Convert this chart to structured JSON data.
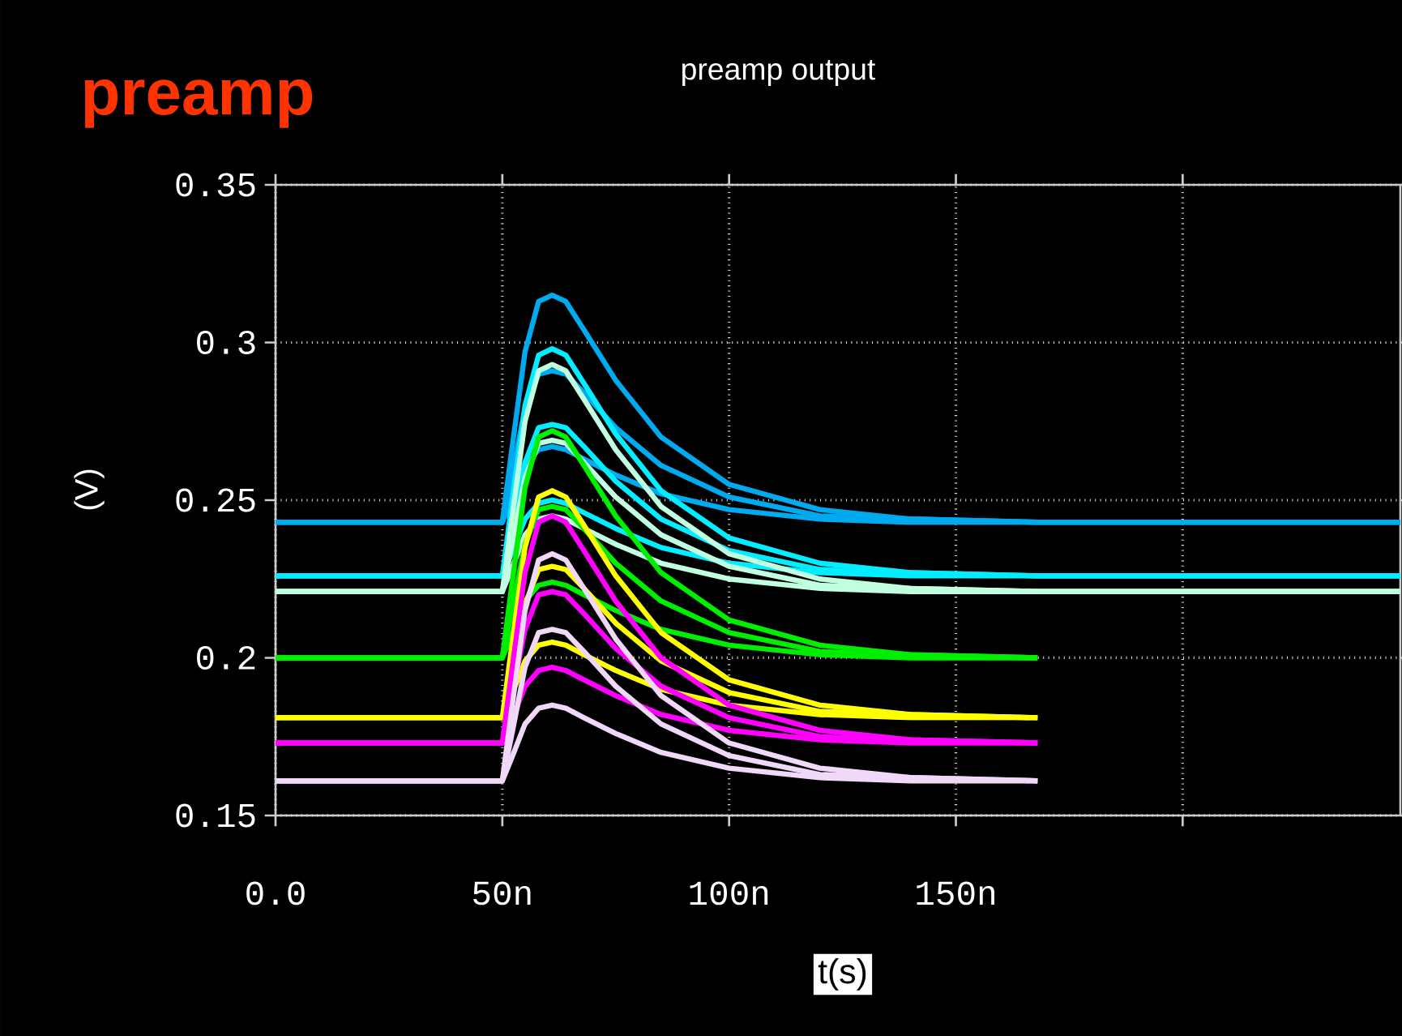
{
  "chart_data": [
    {
      "type": "line",
      "title": "preamp output",
      "xlabel": "t(s)",
      "ylabel": "(V)",
      "annotations": [
        "preamp"
      ],
      "grid": true,
      "xlim": [
        0,
        248
      ],
      "ylim": [
        0.15,
        0.35
      ],
      "xticks": [
        {
          "value": 0,
          "label": "0.0"
        },
        {
          "value": 50,
          "label": "50n"
        },
        {
          "value": 100,
          "label": "100n"
        },
        {
          "value": 150,
          "label": "150n"
        },
        {
          "value": 200,
          "label": null
        }
      ],
      "yticks": [
        0.15,
        0.2,
        0.25,
        0.3,
        0.35
      ],
      "x": [
        0,
        50,
        52,
        55,
        58,
        61,
        64,
        68,
        75,
        85,
        100,
        120,
        140,
        168
      ],
      "series": [
        {
          "color": "#00aaee",
          "x": [
            0,
            50,
            52,
            55,
            58,
            61,
            64,
            68,
            75,
            85,
            100,
            120,
            140,
            168,
            248
          ],
          "values": [
            0.243,
            0.243,
            0.265,
            0.297,
            0.313,
            0.315,
            0.313,
            0.304,
            0.288,
            0.27,
            0.255,
            0.247,
            0.244,
            0.243,
            0.243
          ]
        },
        {
          "color": "#00aaee",
          "x": [
            0,
            50,
            52,
            55,
            58,
            61,
            64,
            68,
            75,
            85,
            100,
            120,
            140,
            168,
            248
          ],
          "values": [
            0.243,
            0.243,
            0.257,
            0.279,
            0.29,
            0.291,
            0.29,
            0.284,
            0.273,
            0.261,
            0.251,
            0.245,
            0.244,
            0.243,
            0.243
          ]
        },
        {
          "color": "#00aaee",
          "x": [
            0,
            50,
            52,
            55,
            58,
            61,
            64,
            68,
            75,
            85,
            100,
            120,
            140,
            168,
            248
          ],
          "values": [
            0.243,
            0.243,
            0.25,
            0.261,
            0.266,
            0.267,
            0.266,
            0.263,
            0.258,
            0.252,
            0.247,
            0.244,
            0.243,
            0.243,
            0.243
          ]
        },
        {
          "color": "#00eeff",
          "x": [
            0,
            50,
            52,
            55,
            58,
            61,
            64,
            68,
            75,
            85,
            100,
            120,
            140,
            168,
            248
          ],
          "values": [
            0.226,
            0.226,
            0.248,
            0.28,
            0.296,
            0.298,
            0.296,
            0.287,
            0.271,
            0.253,
            0.238,
            0.23,
            0.227,
            0.226,
            0.226
          ]
        },
        {
          "color": "#00eeff",
          "x": [
            0,
            50,
            52,
            55,
            58,
            61,
            64,
            68,
            75,
            85,
            100,
            120,
            140,
            168,
            248
          ],
          "values": [
            0.226,
            0.226,
            0.24,
            0.262,
            0.273,
            0.274,
            0.273,
            0.267,
            0.256,
            0.244,
            0.234,
            0.228,
            0.227,
            0.226,
            0.226
          ]
        },
        {
          "color": "#00eeff",
          "x": [
            0,
            50,
            52,
            55,
            58,
            61,
            64,
            68,
            75,
            85,
            100,
            120,
            140,
            168,
            248
          ],
          "values": [
            0.226,
            0.226,
            0.233,
            0.244,
            0.249,
            0.25,
            0.249,
            0.246,
            0.241,
            0.235,
            0.23,
            0.227,
            0.226,
            0.226,
            0.226
          ]
        },
        {
          "color": "#c0ffe0",
          "x": [
            0,
            50,
            52,
            55,
            58,
            61,
            64,
            68,
            75,
            85,
            100,
            120,
            140,
            168,
            248
          ],
          "values": [
            0.221,
            0.221,
            0.243,
            0.275,
            0.291,
            0.293,
            0.291,
            0.282,
            0.266,
            0.248,
            0.233,
            0.225,
            0.222,
            0.221,
            0.221
          ]
        },
        {
          "color": "#c0ffe0",
          "x": [
            0,
            50,
            52,
            55,
            58,
            61,
            64,
            68,
            75,
            85,
            100,
            120,
            140,
            168,
            248
          ],
          "values": [
            0.221,
            0.221,
            0.235,
            0.257,
            0.268,
            0.269,
            0.268,
            0.262,
            0.251,
            0.239,
            0.229,
            0.223,
            0.222,
            0.221,
            0.221
          ]
        },
        {
          "color": "#c0ffe0",
          "x": [
            0,
            50,
            52,
            55,
            58,
            61,
            64,
            68,
            75,
            85,
            100,
            120,
            140,
            168,
            248
          ],
          "values": [
            0.221,
            0.221,
            0.228,
            0.239,
            0.244,
            0.245,
            0.244,
            0.241,
            0.236,
            0.23,
            0.225,
            0.222,
            0.221,
            0.221,
            0.221
          ]
        },
        {
          "color": "#00ee00",
          "values": [
            0.2,
            0.2,
            0.222,
            0.254,
            0.27,
            0.272,
            0.27,
            0.261,
            0.245,
            0.227,
            0.212,
            0.204,
            0.201,
            0.2
          ]
        },
        {
          "color": "#00ee00",
          "values": [
            0.2,
            0.2,
            0.214,
            0.236,
            0.247,
            0.248,
            0.247,
            0.241,
            0.23,
            0.218,
            0.208,
            0.202,
            0.201,
            0.2
          ]
        },
        {
          "color": "#00ee00",
          "values": [
            0.2,
            0.2,
            0.207,
            0.218,
            0.223,
            0.224,
            0.223,
            0.22,
            0.215,
            0.209,
            0.204,
            0.201,
            0.2,
            0.2
          ]
        },
        {
          "color": "#ffff00",
          "values": [
            0.181,
            0.181,
            0.203,
            0.235,
            0.251,
            0.253,
            0.251,
            0.242,
            0.226,
            0.208,
            0.193,
            0.185,
            0.182,
            0.181
          ]
        },
        {
          "color": "#ffff00",
          "values": [
            0.181,
            0.181,
            0.195,
            0.217,
            0.228,
            0.229,
            0.228,
            0.222,
            0.211,
            0.199,
            0.189,
            0.183,
            0.182,
            0.181
          ]
        },
        {
          "color": "#ffff00",
          "values": [
            0.181,
            0.181,
            0.188,
            0.199,
            0.204,
            0.205,
            0.204,
            0.201,
            0.196,
            0.19,
            0.185,
            0.182,
            0.181,
            0.181
          ]
        },
        {
          "color": "#ff00ff",
          "values": [
            0.173,
            0.173,
            0.195,
            0.227,
            0.243,
            0.245,
            0.243,
            0.234,
            0.218,
            0.2,
            0.185,
            0.177,
            0.174,
            0.173
          ]
        },
        {
          "color": "#ff00ff",
          "values": [
            0.173,
            0.173,
            0.187,
            0.209,
            0.22,
            0.221,
            0.22,
            0.214,
            0.203,
            0.191,
            0.181,
            0.175,
            0.174,
            0.173
          ]
        },
        {
          "color": "#ff00ff",
          "values": [
            0.173,
            0.173,
            0.18,
            0.191,
            0.196,
            0.197,
            0.196,
            0.193,
            0.188,
            0.182,
            0.177,
            0.174,
            0.173,
            0.173
          ]
        },
        {
          "color": "#f0d8f8",
          "values": [
            0.161,
            0.161,
            0.183,
            0.215,
            0.231,
            0.233,
            0.231,
            0.222,
            0.206,
            0.188,
            0.173,
            0.165,
            0.162,
            0.161
          ]
        },
        {
          "color": "#f0d8f8",
          "values": [
            0.161,
            0.161,
            0.175,
            0.197,
            0.208,
            0.209,
            0.208,
            0.202,
            0.191,
            0.179,
            0.169,
            0.163,
            0.162,
            0.161
          ]
        },
        {
          "color": "#f0d8f8",
          "values": [
            0.161,
            0.161,
            0.168,
            0.179,
            0.184,
            0.185,
            0.184,
            0.181,
            0.176,
            0.17,
            0.165,
            0.162,
            0.161,
            0.161
          ]
        }
      ]
    }
  ]
}
